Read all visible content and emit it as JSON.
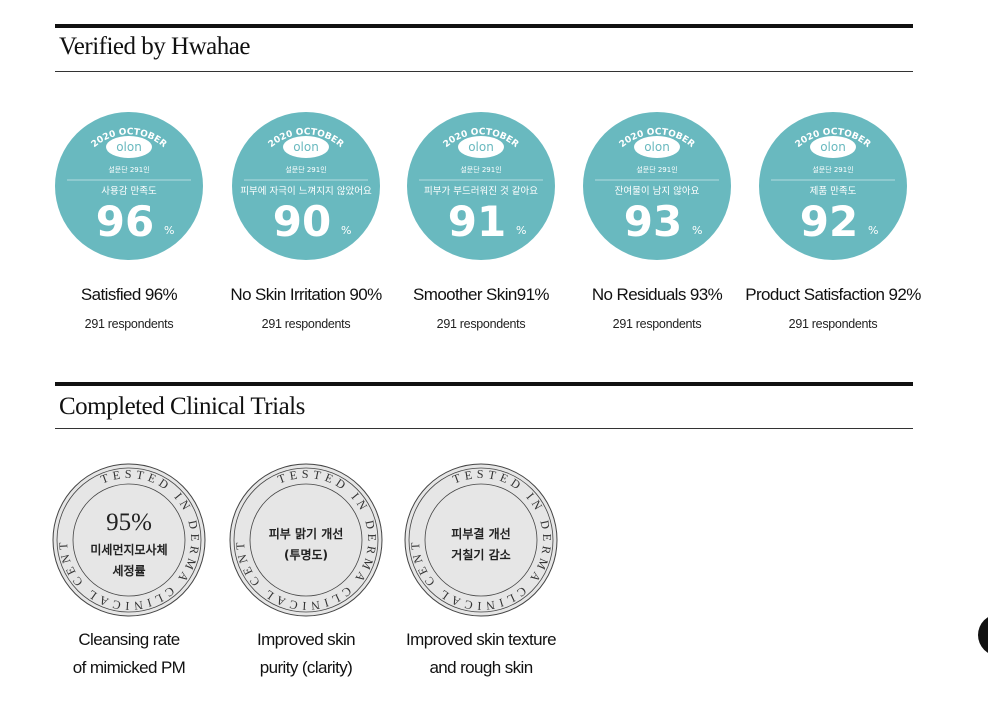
{
  "verified": {
    "title": "Verified by Hwahae",
    "badge_color": "#69b9bf",
    "badges": [
      {
        "top": "2020 OCTOBER",
        "brand": "olon",
        "panel": "설문단 291인",
        "question": "사용감 만족도",
        "value": "96",
        "unit": "%",
        "label": "Satisfied 96%",
        "respondents": "291 respondents"
      },
      {
        "top": "2020 OCTOBER",
        "brand": "olon",
        "panel": "설문단 291인",
        "question": "피부에 자극이 느껴지지 않았어요",
        "value": "90",
        "unit": "%",
        "label": "No Skin Irritation 90%",
        "respondents": "291 respondents"
      },
      {
        "top": "2020 OCTOBER",
        "brand": "olon",
        "panel": "설문단 291인",
        "question": "피부가 부드러워진 것 같아요",
        "value": "91",
        "unit": "%",
        "label": "Smoother Skin91%",
        "respondents": "291 respondents"
      },
      {
        "top": "2020 OCTOBER",
        "brand": "olon",
        "panel": "설문단 291인",
        "question": "잔여물이 남지 않아요",
        "value": "93",
        "unit": "%",
        "label": "No Residuals 93%",
        "respondents": "291 respondents"
      },
      {
        "top": "2020 OCTOBER",
        "brand": "olon",
        "panel": "설문단 291인",
        "question": "제품 만족도",
        "value": "92",
        "unit": "%",
        "label": "Product Satisfaction 92%",
        "respondents": "291 respondents"
      }
    ]
  },
  "clinical": {
    "title": "Completed Clinical Trials",
    "seal_ring_text": "TESTED IN DERMA CLINICAL CENTER",
    "seals": [
      {
        "big": "95%",
        "lines": [
          "미세먼지모사체",
          "세정률"
        ],
        "label1": "Cleansing rate",
        "label2": "of mimicked PM"
      },
      {
        "big": "",
        "lines": [
          "피부 맑기 개선",
          "(투명도)"
        ],
        "label1": "Improved skin",
        "label2": "purity (clarity)"
      },
      {
        "big": "",
        "lines": [
          "피부결 개선",
          "거칠기 감소"
        ],
        "label1": "Improved skin texture",
        "label2": "and rough skin"
      }
    ]
  }
}
